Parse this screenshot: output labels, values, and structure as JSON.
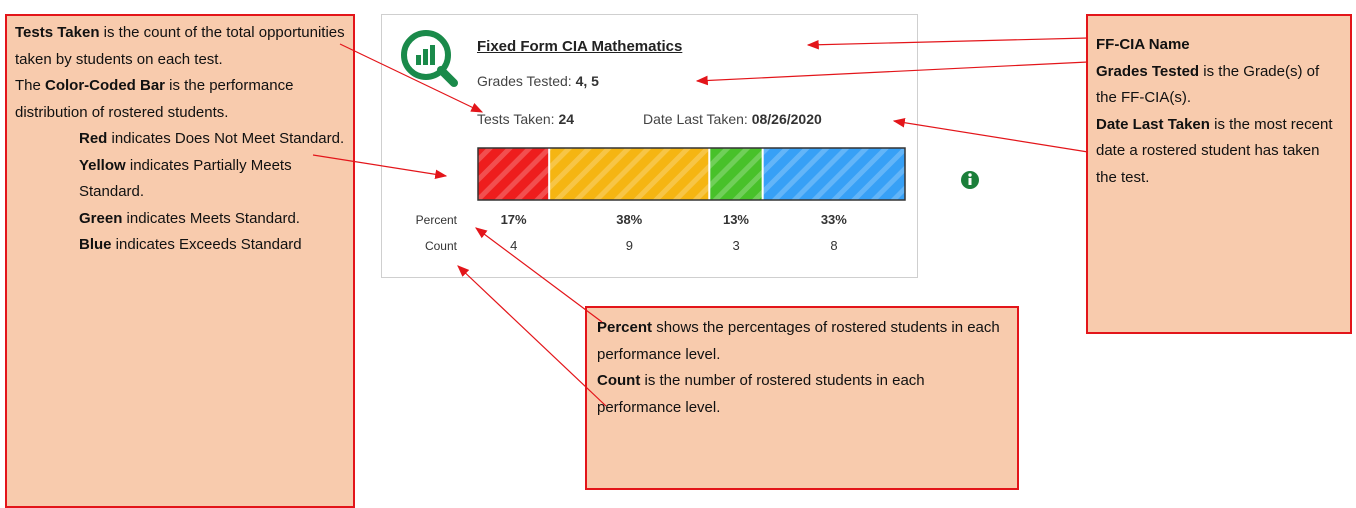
{
  "card": {
    "title": "Fixed Form CIA Mathematics",
    "grades": {
      "label": "Grades Tested:",
      "value": "4, 5"
    },
    "tests": {
      "label": "Tests Taken:",
      "value": 24
    },
    "date": {
      "label": "Date Last Taken:",
      "value": "08/26/2020"
    },
    "distribution": {
      "percent_label": "Percent",
      "count_label": "Count",
      "levels": [
        {
          "color": "#ee1d1d",
          "percent": "17%",
          "count": 4
        },
        {
          "color": "#f5b512",
          "percent": "38%",
          "count": 9
        },
        {
          "color": "#48c12a",
          "percent": "13%",
          "count": 3
        },
        {
          "color": "#37a0f6",
          "percent": "33%",
          "count": 8
        }
      ]
    }
  },
  "notes": {
    "left": {
      "intro": [
        [
          {
            "bold": "Tests Taken"
          },
          {
            "plain": " is the count of the total opportunities taken by students on each test."
          }
        ],
        [
          {
            "plain": "The "
          },
          {
            "bold": "Color-Coded Bar"
          },
          {
            "plain": " is the performance distribution of rostered students."
          }
        ]
      ],
      "levels": [
        [
          {
            "bold": "Red"
          },
          {
            "plain": " indicates Does Not Meet Standard."
          }
        ],
        [
          {
            "bold": "Yellow"
          },
          {
            "plain": " indicates Partially Meets Standard."
          }
        ],
        [
          {
            "bold": "Green"
          },
          {
            "plain": " indicates Meets Standard."
          }
        ],
        [
          {
            "bold": "Blue"
          },
          {
            "plain": " indicates Exceeds Standard"
          }
        ]
      ]
    },
    "middle": [
      [
        {
          "bold": "Percent"
        },
        {
          "plain": " shows the percentages of rostered students in each performance level."
        }
      ],
      [
        {
          "bold": "Count"
        },
        {
          "plain": " is the number of rostered students in each performance level."
        }
      ]
    ],
    "right": [
      [
        {
          "bold": "FF-CIA Name"
        }
      ],
      [
        {
          "bold": "Grades Tested"
        },
        {
          "plain": " is the Grade(s) of the FF-CIA(s)."
        }
      ],
      [
        {
          "bold": "Date Last Taken"
        },
        {
          "plain": " is the most recent date a rostered student has taken the test."
        }
      ]
    ]
  }
}
